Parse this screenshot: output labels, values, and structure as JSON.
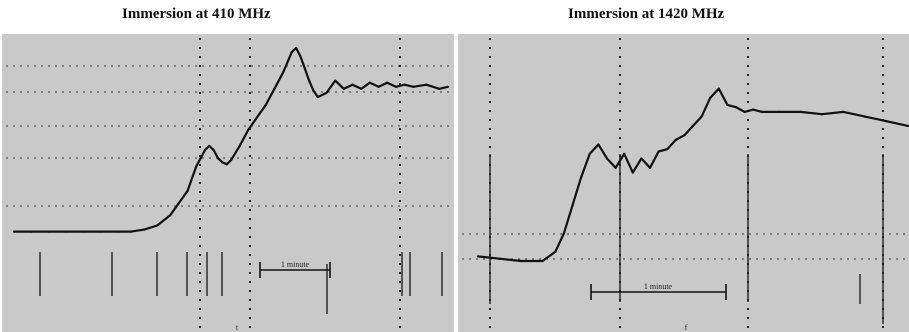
{
  "chart_data": [
    {
      "type": "line",
      "title": "Immersion at 410 MHz",
      "scale_label": "1 minute",
      "footer_mark": "t",
      "x": [
        0,
        0.04,
        0.08,
        0.12,
        0.16,
        0.2,
        0.24,
        0.27,
        0.3,
        0.33,
        0.36,
        0.38,
        0.4,
        0.42,
        0.44,
        0.45,
        0.46,
        0.47,
        0.48,
        0.49,
        0.5,
        0.52,
        0.54,
        0.56,
        0.58,
        0.6,
        0.62,
        0.64,
        0.65,
        0.66,
        0.67,
        0.68,
        0.69,
        0.7,
        0.72,
        0.74,
        0.76,
        0.78,
        0.8,
        0.82,
        0.84,
        0.86,
        0.88,
        0.9,
        0.92,
        0.95,
        0.98,
        1.0
      ],
      "y": [
        0.1,
        0.1,
        0.1,
        0.1,
        0.1,
        0.1,
        0.1,
        0.1,
        0.11,
        0.13,
        0.18,
        0.24,
        0.3,
        0.42,
        0.5,
        0.52,
        0.5,
        0.46,
        0.44,
        0.43,
        0.45,
        0.52,
        0.6,
        0.66,
        0.72,
        0.8,
        0.88,
        0.98,
        1.0,
        0.96,
        0.9,
        0.84,
        0.79,
        0.76,
        0.78,
        0.84,
        0.8,
        0.82,
        0.8,
        0.83,
        0.81,
        0.83,
        0.81,
        0.82,
        0.81,
        0.82,
        0.8,
        0.81
      ]
    },
    {
      "type": "line",
      "title": "Immersion at 1420 MHz",
      "scale_label": "1 minute",
      "footer_mark": "f",
      "x": [
        0,
        0.05,
        0.1,
        0.15,
        0.18,
        0.2,
        0.22,
        0.24,
        0.26,
        0.28,
        0.3,
        0.32,
        0.34,
        0.36,
        0.38,
        0.4,
        0.42,
        0.44,
        0.46,
        0.48,
        0.5,
        0.52,
        0.54,
        0.56,
        0.58,
        0.6,
        0.62,
        0.64,
        0.66,
        0.7,
        0.75,
        0.8,
        0.85,
        0.9,
        0.95,
        1.0
      ],
      "y": [
        0.08,
        0.07,
        0.06,
        0.06,
        0.1,
        0.18,
        0.3,
        0.42,
        0.52,
        0.56,
        0.5,
        0.46,
        0.52,
        0.44,
        0.5,
        0.46,
        0.53,
        0.54,
        0.58,
        0.6,
        0.64,
        0.68,
        0.76,
        0.8,
        0.73,
        0.72,
        0.7,
        0.71,
        0.7,
        0.7,
        0.7,
        0.69,
        0.7,
        0.68,
        0.66,
        0.64
      ]
    }
  ]
}
